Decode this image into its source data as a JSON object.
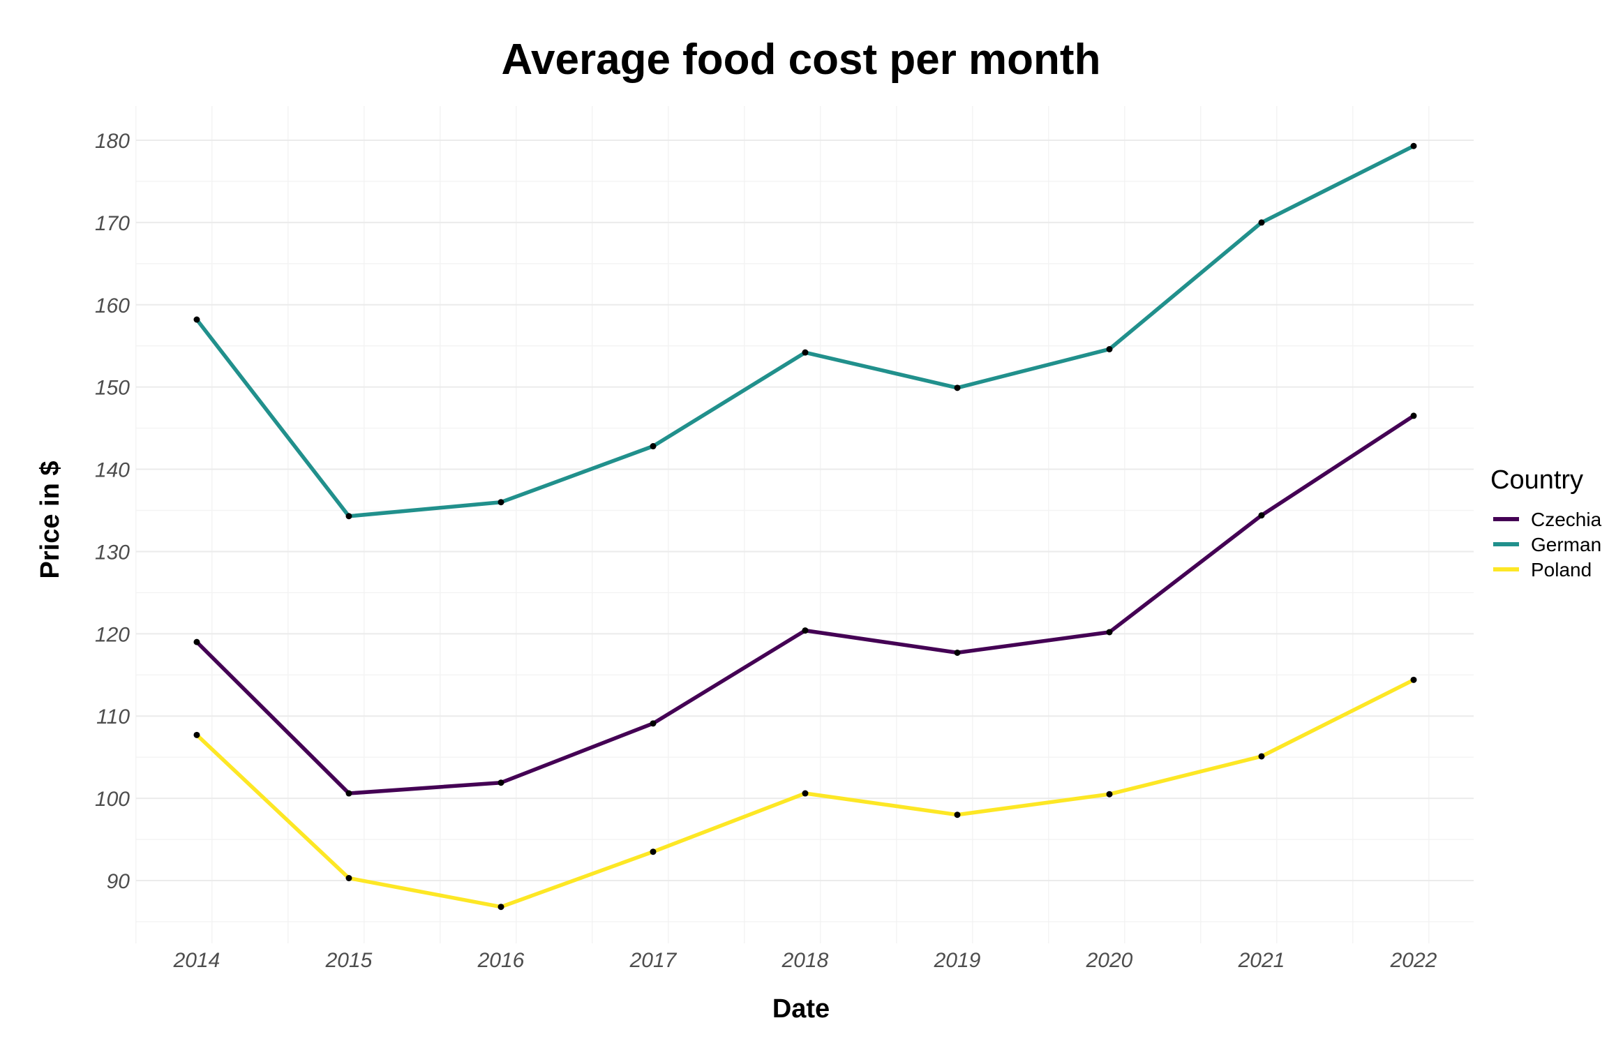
{
  "chart_data": {
    "type": "line",
    "title": "Average food cost per month",
    "xlabel": "Date",
    "ylabel": "Price in $",
    "x": [
      2014,
      2015,
      2016,
      2017,
      2018,
      2019,
      2020,
      2021,
      2022
    ],
    "x_ticks": [
      "2014",
      "2015",
      "2016",
      "2017",
      "2018",
      "2019",
      "2020",
      "2021",
      "2022"
    ],
    "xlim": [
      2013.6,
      2022.4
    ],
    "ylim": [
      83,
      184
    ],
    "y_ticks": [
      90,
      100,
      110,
      120,
      130,
      140,
      150,
      160,
      170,
      180
    ],
    "y_tick_labels": [
      "90",
      "100",
      "110",
      "120",
      "130",
      "140",
      "150",
      "160",
      "170",
      "180"
    ],
    "grid": true,
    "legend": {
      "title": "Country",
      "placement": "right"
    },
    "series": [
      {
        "name": "Czechia",
        "color": "#440154",
        "values": [
          119.0,
          100.6,
          101.9,
          109.1,
          120.4,
          117.7,
          120.2,
          134.4,
          146.5
        ]
      },
      {
        "name": "German",
        "color": "#21908C",
        "values": [
          158.2,
          134.3,
          136.0,
          142.8,
          154.2,
          149.9,
          154.6,
          170.0,
          179.3
        ]
      },
      {
        "name": "Poland",
        "color": "#FDE725",
        "values": [
          107.7,
          90.3,
          86.8,
          93.5,
          100.6,
          98.0,
          100.5,
          105.1,
          114.4
        ]
      }
    ],
    "point_color": "#000000"
  }
}
